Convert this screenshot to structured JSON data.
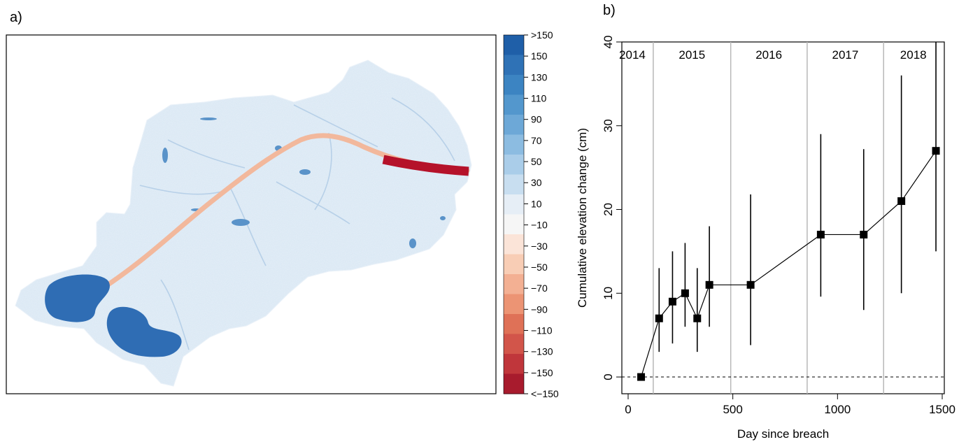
{
  "panel_a": {
    "label": "a)",
    "legend": {
      "labels": [
        ">150",
        "150",
        "130",
        "110",
        "90",
        "70",
        "50",
        "30",
        "10",
        "−10",
        "−30",
        "−50",
        "−70",
        "−90",
        "−110",
        "−130",
        "−150",
        "<−150"
      ],
      "colors": [
        "#1f5fa8",
        "#2f72b6",
        "#3c84c2",
        "#5397cd",
        "#6da8d7",
        "#8cbce1",
        "#aacde9",
        "#c8def0",
        "#e6eef6",
        "#f6f6f6",
        "#fbe4d8",
        "#f8cdb5",
        "#f3b093",
        "#ec9474",
        "#df7157",
        "#d2554a",
        "#c0363b",
        "#a81b2d"
      ]
    },
    "map_colors": {
      "catchment": "#d7e6f3",
      "catchment_light": "#e8f0f8",
      "channel": "#f2b89c",
      "channel_end": "#b5122a",
      "ponds": "#2f6db4"
    }
  },
  "panel_b": {
    "label": "b)"
  },
  "chart_data": {
    "type": "scatter",
    "xlabel": "Day since breach",
    "ylabel": "Cumulative elevation change (cm)",
    "xlim": [
      -30,
      1510
    ],
    "ylim": [
      -2,
      40
    ],
    "xticks": [
      0,
      500,
      1000,
      1500
    ],
    "yticks": [
      0,
      10,
      20,
      30,
      40
    ],
    "reference_line_y": 0,
    "year_dividers": [
      120,
      490,
      855,
      1220
    ],
    "year_labels": [
      {
        "text": "2014",
        "x": 20
      },
      {
        "text": "2015",
        "x": 305
      },
      {
        "text": "2016",
        "x": 672
      },
      {
        "text": "2017",
        "x": 1037
      },
      {
        "text": "2018",
        "x": 1362
      }
    ],
    "series": [
      {
        "x": [
          62,
          148,
          212,
          272,
          330,
          388,
          585,
          920,
          1125,
          1305,
          1470
        ],
        "y": [
          0,
          7,
          9,
          10,
          7,
          11,
          11,
          17,
          17,
          21,
          27
        ],
        "y_low": [
          0,
          3,
          4,
          6,
          3,
          6,
          3.8,
          9.6,
          8,
          10,
          15
        ],
        "y_high": [
          0,
          13,
          15,
          16,
          13,
          18,
          21.8,
          29,
          27.2,
          36,
          40
        ]
      }
    ],
    "marker": "square",
    "grid": false
  }
}
